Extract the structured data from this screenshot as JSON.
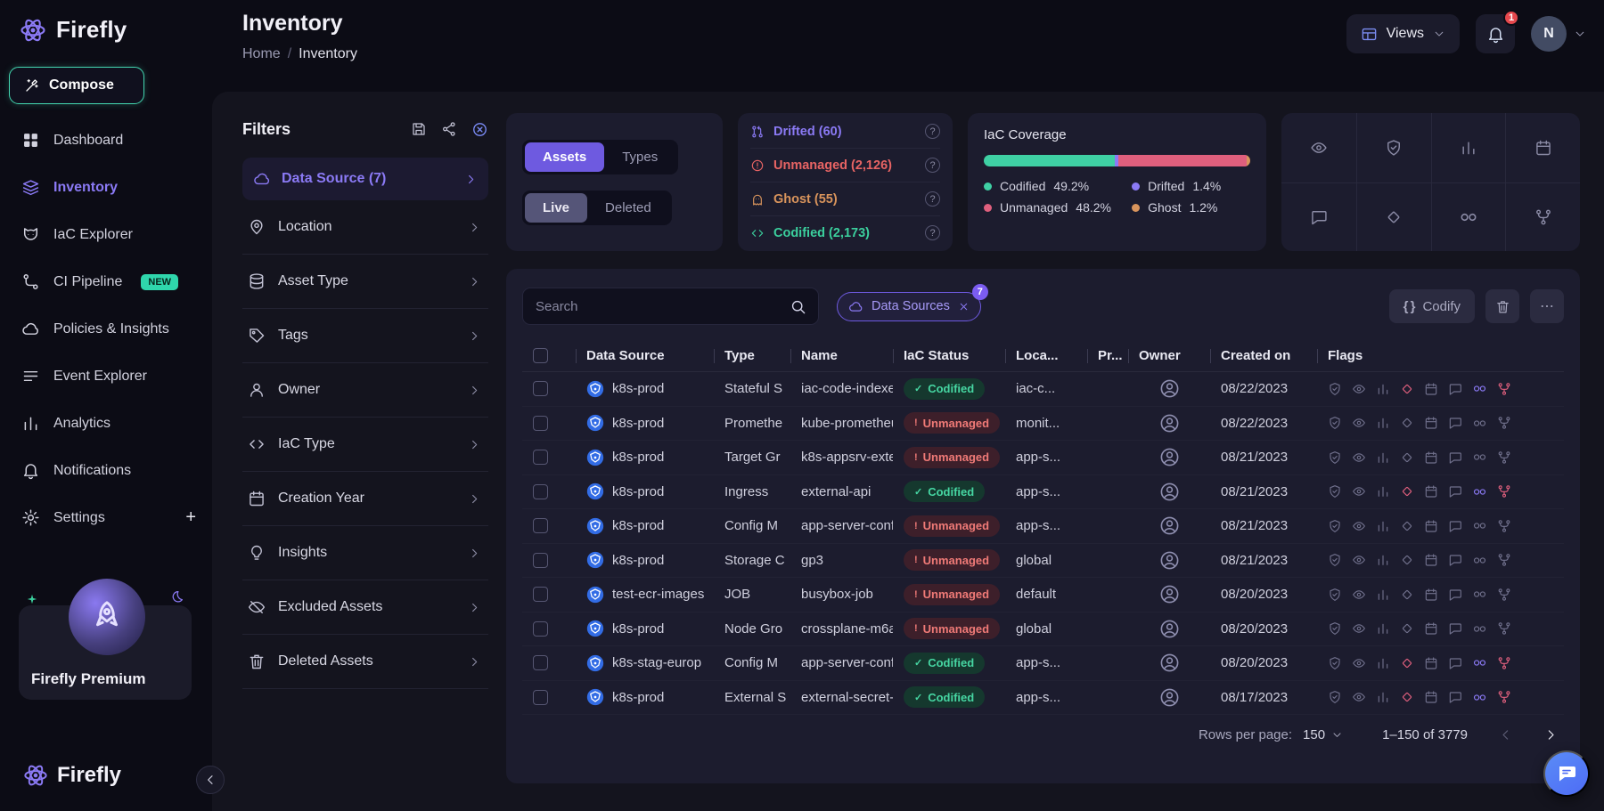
{
  "colors": {
    "accent_purple": "#8b7af5",
    "accent_teal": "#3bcf9d",
    "status_red": "#e86464",
    "status_orange": "#d9945c",
    "status_pink": "#df5f7d",
    "kubernetes_blue": "#326ce5",
    "notification_red": "#e5484d"
  },
  "sidebar": {
    "logo_text": "Firefly",
    "compose_label": "Compose",
    "items": [
      {
        "label": "Dashboard"
      },
      {
        "label": "Inventory"
      },
      {
        "label": "IaC Explorer"
      },
      {
        "label": "CI Pipeline",
        "badge": "NEW"
      },
      {
        "label": "Policies & Insights"
      },
      {
        "label": "Event Explorer"
      },
      {
        "label": "Analytics"
      },
      {
        "label": "Notifications"
      },
      {
        "label": "Settings",
        "add": "+"
      }
    ],
    "premium_label": "Firefly Premium",
    "footer_logo_text": "Firefly"
  },
  "header": {
    "title": "Inventory",
    "breadcrumb": {
      "home": "Home",
      "separator": "/",
      "current": "Inventory"
    },
    "views_label": "Views",
    "notification_count": "1",
    "avatar_initial": "N"
  },
  "filters": {
    "title": "Filters",
    "active_item": "Data Source (7)",
    "items": [
      "Location",
      "Asset Type",
      "Tags",
      "Owner",
      "IaC Type",
      "Creation Year",
      "Insights",
      "Excluded Assets",
      "Deleted Assets"
    ]
  },
  "panels": {
    "view_toggle": {
      "assets": "Assets",
      "types": "Types",
      "live": "Live",
      "deleted": "Deleted"
    },
    "stats": {
      "help": "?",
      "items": [
        {
          "label": "Drifted (60)"
        },
        {
          "label": "Unmanaged (2,126)"
        },
        {
          "label": "Ghost (55)"
        },
        {
          "label": "Codified (2,173)"
        }
      ]
    },
    "coverage": {
      "title": "IaC Coverage",
      "legend": [
        {
          "label": "Codified",
          "pct": "49.2%",
          "value": 49.2,
          "color": "#3fd0a4"
        },
        {
          "label": "Drifted",
          "pct": "1.4%",
          "value": 1.4,
          "color": "#8b7af5"
        },
        {
          "label": "Unmanaged",
          "pct": "48.2%",
          "value": 48.2,
          "color": "#df5f7d"
        },
        {
          "label": "Ghost",
          "pct": "1.2%",
          "value": 1.2,
          "color": "#d9945c"
        }
      ]
    }
  },
  "table": {
    "search_placeholder": "Search",
    "filter_chip": {
      "label": "Data Sources",
      "count": "7"
    },
    "codify_braces": "{ }",
    "codify_label": "Codify",
    "columns": [
      "Data Source",
      "Type",
      "Name",
      "IaC Status",
      "Loca...",
      "Pr...",
      "Owner",
      "Created on",
      "Flags"
    ],
    "rows": [
      {
        "data_source": "k8s-prod",
        "type": "Stateful S",
        "name": "iac-code-indexe",
        "status": "Codified",
        "status_icon": "✓",
        "is_codified": true,
        "location": "iac-c...",
        "project": "",
        "created": "08/22/2023",
        "flags": {
          "diamond": true,
          "infinity": true,
          "branch": true
        }
      },
      {
        "data_source": "k8s-prod",
        "type": "Promethe",
        "name": "kube-prometheu",
        "status": "Unmanaged",
        "status_icon": "!",
        "is_codified": false,
        "location": "monit...",
        "project": "",
        "created": "08/22/2023",
        "flags": {
          "diamond": false,
          "infinity": false,
          "branch": false
        }
      },
      {
        "data_source": "k8s-prod",
        "type": "Target Gr",
        "name": "k8s-appsrv-exte",
        "status": "Unmanaged",
        "status_icon": "!",
        "is_codified": false,
        "location": "app-s...",
        "project": "",
        "created": "08/21/2023",
        "flags": {
          "diamond": false,
          "infinity": false,
          "branch": false
        }
      },
      {
        "data_source": "k8s-prod",
        "type": "Ingress",
        "name": "external-api",
        "status": "Codified",
        "status_icon": "✓",
        "is_codified": true,
        "location": "app-s...",
        "project": "",
        "created": "08/21/2023",
        "flags": {
          "diamond": true,
          "infinity": true,
          "branch": true
        }
      },
      {
        "data_source": "k8s-prod",
        "type": "Config M",
        "name": "app-server-conf",
        "status": "Unmanaged",
        "status_icon": "!",
        "is_codified": false,
        "location": "app-s...",
        "project": "",
        "created": "08/21/2023",
        "flags": {
          "diamond": false,
          "infinity": false,
          "branch": false
        }
      },
      {
        "data_source": "k8s-prod",
        "type": "Storage C",
        "name": "gp3",
        "status": "Unmanaged",
        "status_icon": "!",
        "is_codified": false,
        "location": "global",
        "project": "",
        "created": "08/21/2023",
        "flags": {
          "diamond": false,
          "infinity": false,
          "branch": false
        }
      },
      {
        "data_source": "test-ecr-images",
        "type": "JOB",
        "name": "busybox-job",
        "status": "Unmanaged",
        "status_icon": "!",
        "is_codified": false,
        "location": "default",
        "project": "",
        "created": "08/20/2023",
        "flags": {
          "diamond": false,
          "infinity": false,
          "branch": false
        }
      },
      {
        "data_source": "k8s-prod",
        "type": "Node Gro",
        "name": "crossplane-m6a",
        "status": "Unmanaged",
        "status_icon": "!",
        "is_codified": false,
        "location": "global",
        "project": "",
        "created": "08/20/2023",
        "flags": {
          "diamond": false,
          "infinity": false,
          "branch": false
        }
      },
      {
        "data_source": "k8s-stag-europ",
        "type": "Config M",
        "name": "app-server-conf",
        "status": "Codified",
        "status_icon": "✓",
        "is_codified": true,
        "location": "app-s...",
        "project": "",
        "created": "08/20/2023",
        "flags": {
          "diamond": true,
          "infinity": true,
          "branch": true
        }
      },
      {
        "data_source": "k8s-prod",
        "type": "External S",
        "name": "external-secret-",
        "status": "Codified",
        "status_icon": "✓",
        "is_codified": true,
        "location": "app-s...",
        "project": "",
        "created": "08/17/2023",
        "flags": {
          "diamond": true,
          "infinity": true,
          "branch": true
        }
      }
    ],
    "pagination": {
      "rows_per_page_label": "Rows per page:",
      "rows_per_page_value": "150",
      "range": "1–150 of 3779"
    }
  }
}
